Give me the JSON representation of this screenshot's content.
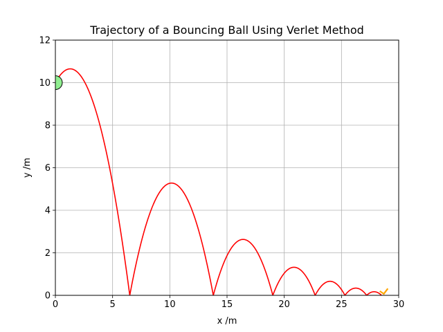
{
  "chart_data": {
    "type": "line",
    "title": "Trajectory of a Bouncing Ball Using Verlet Method",
    "xlabel": "x /m",
    "ylabel": "y /m",
    "xlim": [
      0,
      30
    ],
    "ylim": [
      0,
      12
    ],
    "xticks": [
      0,
      5,
      10,
      15,
      20,
      25,
      30
    ],
    "yticks": [
      0,
      2,
      4,
      6,
      8,
      10,
      12
    ],
    "xtick_labels": [
      "0",
      "5",
      "10",
      "15",
      "20",
      "25",
      "30"
    ],
    "ytick_labels": [
      "0",
      "2",
      "4",
      "6",
      "8",
      "10",
      "12"
    ],
    "grid": true,
    "series": [
      {
        "color": "#ff0000",
        "arcs": [
          {
            "x_start": 0.0,
            "x_peak": 1.3,
            "y_peak": 10.65,
            "x_end": 6.5,
            "y_start": 10.0
          },
          {
            "x_start": 6.5,
            "x_peak": 10.15,
            "y_peak": 5.28,
            "x_end": 13.8,
            "y_start": 0.0
          },
          {
            "x_start": 13.8,
            "x_peak": 16.4,
            "y_peak": 2.63,
            "x_end": 19.0,
            "y_start": 0.0
          },
          {
            "x_start": 19.0,
            "x_peak": 20.85,
            "y_peak": 1.32,
            "x_end": 22.7,
            "y_start": 0.0
          },
          {
            "x_start": 22.7,
            "x_peak": 24.0,
            "y_peak": 0.66,
            "x_end": 25.3,
            "y_start": 0.0
          },
          {
            "x_start": 25.3,
            "x_peak": 26.25,
            "y_peak": 0.34,
            "x_end": 27.2,
            "y_start": 0.0
          },
          {
            "x_start": 27.2,
            "x_peak": 27.85,
            "y_peak": 0.17,
            "x_end": 28.5,
            "y_start": 0.0
          }
        ]
      }
    ],
    "ball_start": {
      "x": 0.0,
      "y": 10.0,
      "fill": "#90ee90",
      "edge": "#000000"
    },
    "ball_end": {
      "x": 28.7,
      "y": 0.12,
      "color": "#ffa500"
    }
  }
}
